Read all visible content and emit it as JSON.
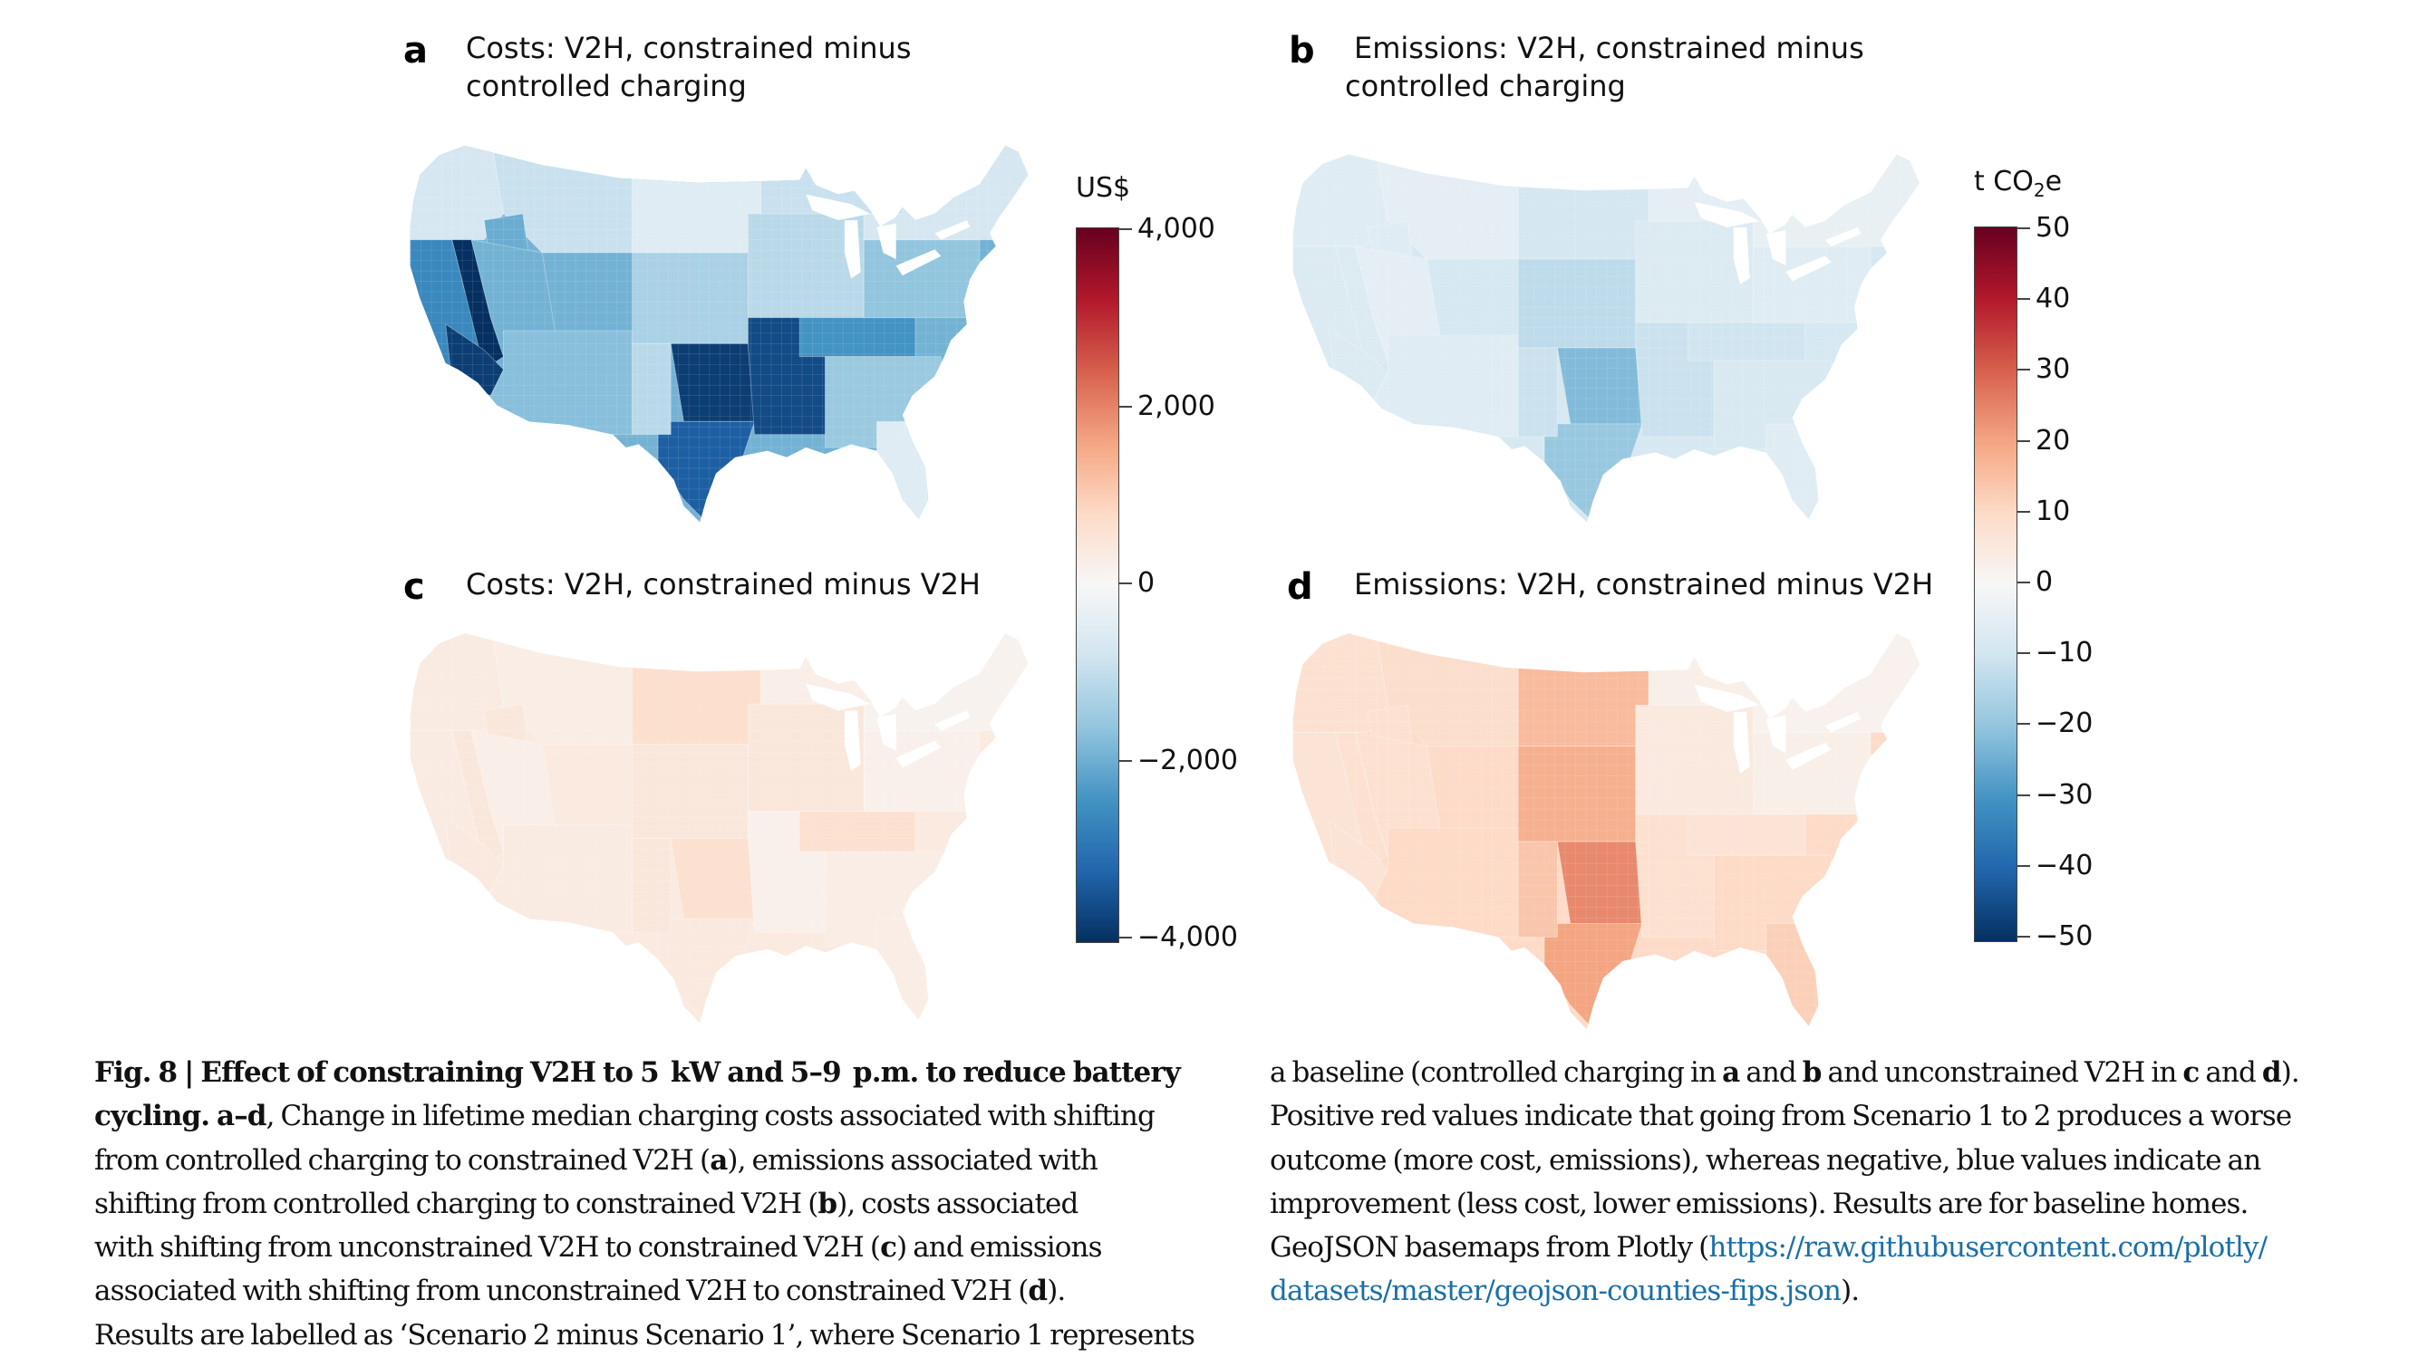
{
  "figure": {
    "panels": [
      {
        "letter": "a",
        "title": "Costs: V2H, constrained minus\ncontrolled charging"
      },
      {
        "letter": "b",
        "title": "Emissions: V2H, constrained minus\ncontrolled charging"
      },
      {
        "letter": "c",
        "title": "Costs: V2H, constrained minus V2H"
      },
      {
        "letter": "d",
        "title": "Emissions: V2H, constrained minus V2H"
      }
    ],
    "colorbars": [
      {
        "unit": "US$",
        "ticks": [
          "4,000",
          "2,000",
          "0",
          "−2,000",
          "−4,000"
        ]
      },
      {
        "unit_main": "t CO",
        "unit_sub": "2",
        "unit_tail": "e",
        "ticks": [
          "50",
          "40",
          "30",
          "20",
          "10",
          "0",
          "−10",
          "−20",
          "−30",
          "−40",
          "−50"
        ]
      }
    ]
  },
  "caption": {
    "left": [
      [
        {
          "b": "Fig. 8 | Effect of constraining V2H to 5  kW and 5–9  p.m. to reduce battery"
        }
      ],
      [
        {
          "b": "cycling. a–d"
        },
        {
          "t": ", Change in lifetime median charging costs associated with shifting"
        }
      ],
      [
        {
          "t": "from controlled charging to constrained V2H ("
        },
        {
          "b": "a"
        },
        {
          "t": "), emissions associated with"
        }
      ],
      [
        {
          "t": "shifting from controlled charging to constrained V2H ("
        },
        {
          "b": "b"
        },
        {
          "t": "), costs associated"
        }
      ],
      [
        {
          "t": "with shifting from unconstrained V2H to constrained V2H ("
        },
        {
          "b": "c"
        },
        {
          "t": ") and emissions"
        }
      ],
      [
        {
          "t": "associated with shifting from unconstrained V2H to constrained V2H ("
        },
        {
          "b": "d"
        },
        {
          "t": ")."
        }
      ],
      [
        {
          "t": "Results are labelled as ‘Scenario 2 minus Scenario 1’, where Scenario 1 represents"
        }
      ]
    ],
    "right": [
      [
        {
          "t": "a baseline (controlled charging in "
        },
        {
          "b": "a"
        },
        {
          "t": " and "
        },
        {
          "b": "b"
        },
        {
          "t": " and unconstrained V2H in "
        },
        {
          "b": "c"
        },
        {
          "t": " and "
        },
        {
          "b": "d"
        },
        {
          "t": ")."
        }
      ],
      [
        {
          "t": "Positive red values indicate that going from Scenario 1 to 2 produces a worse"
        }
      ],
      [
        {
          "t": "outcome (more cost, emissions), whereas negative, blue values indicate an"
        }
      ],
      [
        {
          "t": "improvement (less cost, lower emissions). Results are for baseline homes."
        }
      ],
      [
        {
          "t": "GeoJSON basemaps from Plotly ("
        },
        {
          "l": "https://raw.githubusercontent.com/plotly/"
        }
      ],
      [
        {
          "l": "datasets/master/geojson-counties-fips.json"
        },
        {
          "t": ")."
        }
      ]
    ]
  },
  "chart_data": [
    {
      "type": "heatmap",
      "subtype": "choropleth-us-counties",
      "panel": "a",
      "title": "Costs: V2H, constrained minus controlled charging",
      "colorbar_label": "US$",
      "colorscale": "RdBu (reversed: red positive, blue negative)",
      "range": [
        -4000,
        4000
      ],
      "ticks": [
        4000,
        2000,
        0,
        -2000,
        -4000
      ],
      "regions": {
        "pacific_northwest": -700,
        "northern_rockies": -900,
        "idaho_pocket": -2000,
        "california_coast": -2600,
        "sierra_nevada_strip": -4000,
        "southern_california": -3800,
        "great_basin": -1900,
        "southwest": -1700,
        "northern_plains": -500,
        "central_plains": -1300,
        "texas_central": -3800,
        "south_texas": -3300,
        "west_texas": -1100,
        "midwest": -1100,
        "mississippi_valley": -3600,
        "tennessee_appalachia": -2400,
        "southeast": -1500,
        "mid_atlantic": -1600,
        "northeast": -700,
        "great_lakes": -900,
        "florida": -500
      }
    },
    {
      "type": "heatmap",
      "subtype": "choropleth-us-counties",
      "panel": "b",
      "title": "Emissions: V2H, constrained minus controlled charging",
      "colorbar_label": "t CO2e",
      "colorscale": "RdBu (reversed: red positive, blue negative)",
      "range": [
        -50,
        50
      ],
      "ticks": [
        50,
        40,
        30,
        20,
        10,
        0,
        -10,
        -20,
        -30,
        -40,
        -50
      ],
      "regions": {
        "pacific_northwest": -6,
        "northern_rockies": -5,
        "idaho_pocket": -6,
        "california_coast": -7,
        "sierra_nevada_strip": -7,
        "southern_california": -7,
        "great_basin": -5,
        "southwest": -6,
        "northern_plains": -9,
        "central_plains": -13,
        "texas_central": -22,
        "south_texas": -19,
        "west_texas": -11,
        "midwest": -7,
        "mississippi_valley": -11,
        "tennessee_appalachia": -10,
        "southeast": -8,
        "mid_atlantic": -6,
        "northeast": -4,
        "great_lakes": -5,
        "florida": -6
      }
    },
    {
      "type": "heatmap",
      "subtype": "choropleth-us-counties",
      "panel": "c",
      "title": "Costs: V2H, constrained minus V2H",
      "colorbar_label": "US$",
      "colorscale": "RdBu (reversed: red positive, blue negative)",
      "range": [
        -4000,
        4000
      ],
      "ticks": [
        4000,
        2000,
        0,
        -2000,
        -4000
      ],
      "regions": {
        "pacific_northwest": 350,
        "northern_rockies": 300,
        "idaho_pocket": 450,
        "california_coast": 350,
        "sierra_nevada_strip": 450,
        "southern_california": 400,
        "great_basin": 250,
        "southwest": 350,
        "northern_plains": 700,
        "central_plains": 450,
        "texas_central": 650,
        "south_texas": 400,
        "west_texas": 450,
        "midwest": 450,
        "mississippi_valley": 200,
        "tennessee_appalachia": 650,
        "southeast": 300,
        "mid_atlantic": 200,
        "northeast": 150,
        "great_lakes": 250,
        "florida": 300
      }
    },
    {
      "type": "heatmap",
      "subtype": "choropleth-us-counties",
      "panel": "d",
      "title": "Emissions: V2H, constrained minus V2H",
      "colorbar_label": "t CO2e",
      "colorscale": "RdBu (reversed: red positive, blue negative)",
      "range": [
        -50,
        50
      ],
      "ticks": [
        50,
        40,
        30,
        20,
        10,
        0,
        -10,
        -20,
        -30,
        -40,
        -50
      ],
      "regions": {
        "pacific_northwest": 8,
        "northern_rockies": 9,
        "idaho_pocket": 8,
        "california_coast": 7,
        "sierra_nevada_strip": 8,
        "southern_california": 7,
        "great_basin": 8,
        "southwest": 10,
        "northern_plains": 16,
        "central_plains": 18,
        "texas_central": 24,
        "south_texas": 20,
        "west_texas": 14,
        "midwest": 5,
        "mississippi_valley": 8,
        "tennessee_appalachia": 7,
        "southeast": 10,
        "mid_atlantic": 3,
        "northeast": 2,
        "great_lakes": 3,
        "florida": 12
      }
    }
  ]
}
